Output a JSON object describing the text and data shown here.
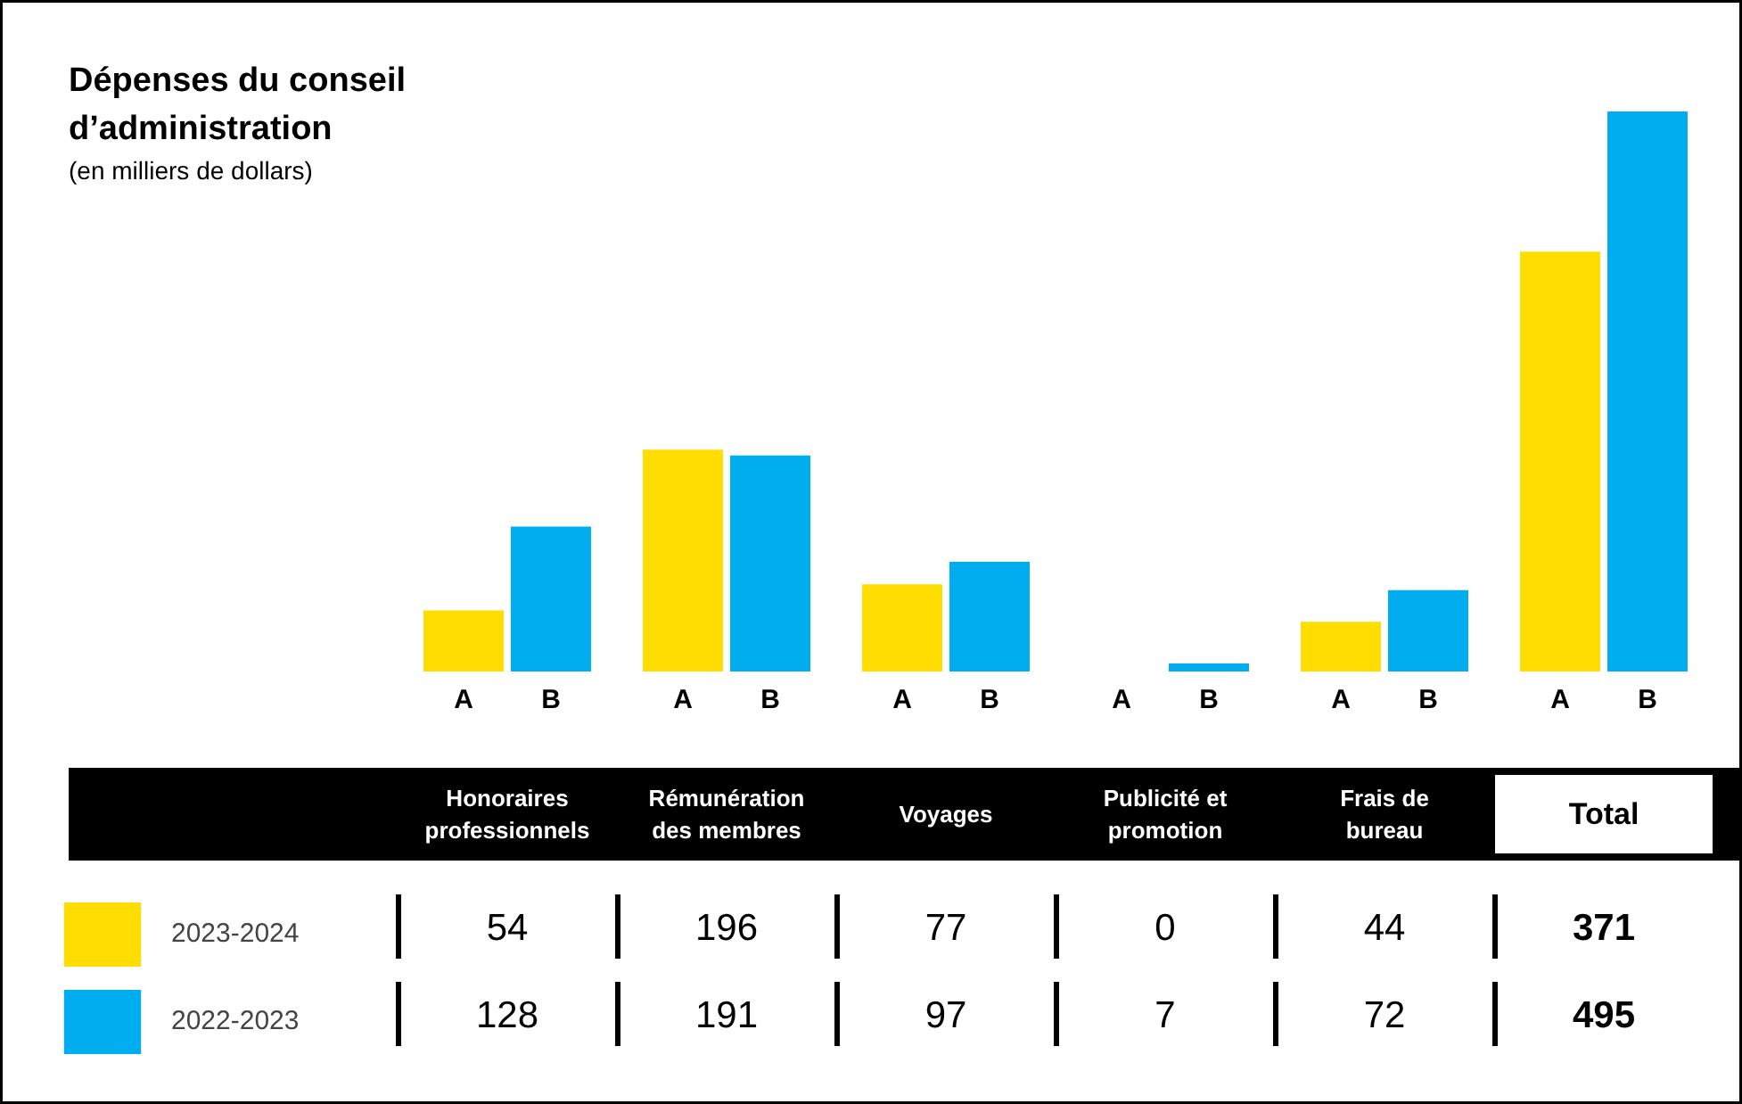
{
  "chart_data": {
    "type": "bar",
    "title": "Dépenses du conseil d’administration",
    "subtitle": "(en milliers de dollars)",
    "categories": [
      "Honoraires professionnels",
      "Rémunération des membres",
      "Voyages",
      "Publicité et promotion",
      "Frais de bureau",
      "Total"
    ],
    "series": [
      {
        "name": "2023-2024",
        "color": "#ffdd00",
        "values": [
          54,
          196,
          77,
          0,
          44,
          371
        ]
      },
      {
        "name": "2022-2023",
        "color": "#00aeef",
        "values": [
          128,
          191,
          97,
          7,
          72,
          495
        ]
      }
    ],
    "annotations": [
      "A",
      "B"
    ],
    "data_labels": true,
    "legend": "bottom"
  }
}
